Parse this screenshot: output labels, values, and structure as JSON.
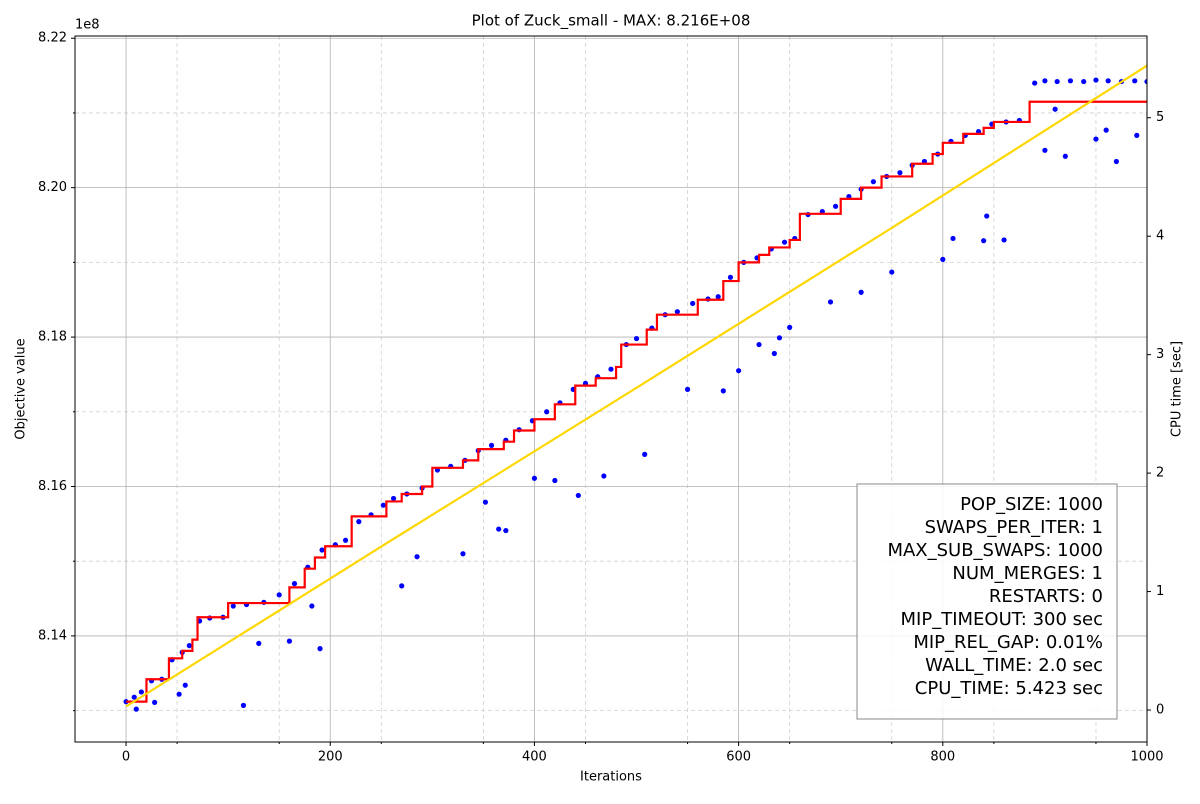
{
  "chart_data": {
    "type": "line",
    "title": "Plot of Zuck_small - MAX: 8.216E+08",
    "xlabel": "Iterations",
    "ylabel": "Objective value",
    "y2label": "CPU time [sec]",
    "y_offset_label": "1e8",
    "xlim": [
      -50,
      1000
    ],
    "xticks": [
      0,
      200,
      400,
      600,
      800,
      1000
    ],
    "xticks_minor": [
      50,
      150,
      250,
      350,
      450,
      550,
      650,
      750,
      850,
      950
    ],
    "ylim": [
      8.1258,
      8.2203
    ],
    "yticks": [
      8.14,
      8.16,
      8.18,
      {
        "value": 8.2,
        "label": "8.20"
      },
      8.22
    ],
    "yticks_minor": [
      8.13,
      8.15,
      8.17,
      8.19,
      8.21
    ],
    "y2lim": [
      -0.27,
      5.69
    ],
    "y2ticks": [
      0,
      1,
      2,
      3,
      4,
      5
    ],
    "grid": true,
    "text_box": [
      "POP_SIZE: 1000",
      "SWAPS_PER_ITER: 1",
      "MAX_SUB_SWAPS: 1000",
      "NUM_MERGES: 1",
      "RESTARTS: 0",
      "MIP_TIMEOUT: 300 sec",
      "MIP_REL_GAP: 0.01%",
      "WALL_TIME: 2.0 sec",
      "CPU_TIME: 5.423 sec"
    ],
    "series": [
      {
        "type": "scatter",
        "color": "#0000ff",
        "x": [
          0,
          8,
          15,
          25,
          35,
          45,
          55,
          62,
          72,
          82,
          95,
          105,
          118,
          135,
          150,
          165,
          178,
          192,
          205,
          215,
          228,
          240,
          252,
          262,
          275,
          290,
          305,
          318,
          332,
          345,
          358,
          372,
          385,
          398,
          412,
          425,
          438,
          450,
          462,
          475,
          490,
          500,
          515,
          528,
          540,
          555,
          570,
          580,
          592,
          605,
          618,
          632,
          645,
          655,
          668,
          682,
          695,
          708,
          720,
          732,
          745,
          758,
          770,
          782,
          795,
          808,
          822,
          835,
          848,
          862,
          875,
          890,
          900,
          912,
          925,
          938,
          950,
          962,
          975,
          988,
          1000,
          10,
          28,
          52,
          58,
          115,
          130,
          160,
          190,
          182,
          270,
          285,
          330,
          365,
          372,
          352,
          400,
          420,
          443,
          468,
          508,
          550,
          585,
          600,
          620,
          635,
          640,
          650,
          690,
          720,
          750,
          800,
          810,
          840,
          860,
          843,
          900,
          920,
          950,
          970,
          990,
          910,
          960
        ],
        "values": [
          8.1312,
          8.1318,
          8.1325,
          8.134,
          8.1342,
          8.1368,
          8.1378,
          8.1387,
          8.142,
          8.1424,
          8.1425,
          8.144,
          8.1442,
          8.1445,
          8.1455,
          8.147,
          8.1492,
          8.1515,
          8.1522,
          8.1528,
          8.1553,
          8.1562,
          8.1575,
          8.1584,
          8.159,
          8.1598,
          8.1622,
          8.1627,
          8.1635,
          8.1648,
          8.1655,
          8.1662,
          8.1676,
          8.1688,
          8.17,
          8.1712,
          8.173,
          8.1738,
          8.1747,
          8.1757,
          8.179,
          8.1798,
          8.1812,
          8.183,
          8.1834,
          8.1845,
          8.1851,
          8.1854,
          8.188,
          8.19,
          8.1906,
          8.1918,
          8.1927,
          8.1932,
          8.1964,
          8.1968,
          8.1975,
          8.1988,
          8.1998,
          8.2008,
          8.2015,
          8.202,
          8.203,
          8.2035,
          8.2045,
          8.2062,
          8.207,
          8.2075,
          8.2085,
          8.2088,
          8.209,
          8.214,
          8.2143,
          8.2142,
          8.2143,
          8.2142,
          8.2144,
          8.2143,
          8.2142,
          8.2143,
          8.2142,
          8.1302,
          8.1311,
          8.1322,
          8.1334,
          8.1307,
          8.139,
          8.1393,
          8.1383,
          8.144,
          8.1467,
          8.1506,
          8.151,
          8.1543,
          8.1541,
          8.1579,
          8.1611,
          8.1608,
          8.1588,
          8.1614,
          8.1643,
          8.173,
          8.1728,
          8.1755,
          8.179,
          8.1778,
          8.1799,
          8.1813,
          8.1847,
          8.186,
          8.1887,
          8.1904,
          8.1932,
          8.1929,
          8.193,
          8.1962,
          8.205,
          8.2042,
          8.2065,
          8.2035,
          8.207,
          8.2105,
          8.2077
        ]
      },
      {
        "type": "step",
        "color": "#ff0000",
        "x": [
          0,
          20,
          42,
          55,
          65,
          70,
          100,
          160,
          175,
          185,
          195,
          221,
          255,
          270,
          290,
          300,
          330,
          345,
          370,
          380,
          400,
          420,
          440,
          460,
          480,
          485,
          510,
          520,
          560,
          585,
          600,
          620,
          630,
          650,
          660,
          700,
          720,
          740,
          770,
          790,
          800,
          820,
          840,
          850,
          885,
          1000
        ],
        "values": [
          8.1312,
          8.1342,
          8.137,
          8.138,
          8.1395,
          8.1425,
          8.1444,
          8.1465,
          8.149,
          8.1505,
          8.152,
          8.156,
          8.158,
          8.159,
          8.16,
          8.1625,
          8.1635,
          8.165,
          8.166,
          8.1675,
          8.169,
          8.171,
          8.1735,
          8.1745,
          8.176,
          8.179,
          8.181,
          8.183,
          8.185,
          8.1875,
          8.19,
          8.191,
          8.192,
          8.193,
          8.1965,
          8.1985,
          8.2,
          8.2015,
          8.2032,
          8.2045,
          8.206,
          8.2072,
          8.208,
          8.2088,
          8.2115,
          8.2115
        ]
      },
      {
        "type": "line",
        "axis": "y2",
        "color": "#ffd700",
        "x": [
          0,
          250,
          500,
          750,
          1000
        ],
        "values": [
          0.03,
          1.38,
          2.72,
          4.07,
          5.44
        ]
      }
    ]
  }
}
